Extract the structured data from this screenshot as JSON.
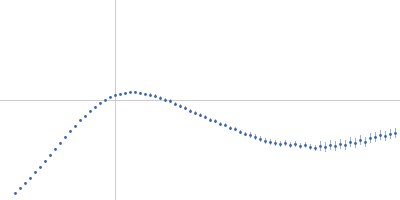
{
  "chart_data": {
    "type": "scatter",
    "x": [
      0.15,
      0.2,
      0.25,
      0.3,
      0.35,
      0.4,
      0.45,
      0.5,
      0.55,
      0.6,
      0.65,
      0.7,
      0.75,
      0.8,
      0.85,
      0.9,
      0.95,
      1.0,
      1.05,
      1.1,
      1.15,
      1.2,
      1.25,
      1.3,
      1.35,
      1.4,
      1.45,
      1.5,
      1.55,
      1.6,
      1.65,
      1.7,
      1.75,
      1.8,
      1.85,
      1.9,
      1.95,
      2.0,
      2.05,
      2.1,
      2.15,
      2.2,
      2.25,
      2.3,
      2.35,
      2.4,
      2.45,
      2.5,
      2.55,
      2.6,
      2.65,
      2.7,
      2.75,
      2.8,
      2.85,
      2.9,
      2.95,
      3.0,
      3.05,
      3.1,
      3.15,
      3.2,
      3.25,
      3.3,
      3.35,
      3.4,
      3.45,
      3.5,
      3.55,
      3.6,
      3.65,
      3.7,
      3.75,
      3.8,
      3.85,
      3.9,
      3.95
    ],
    "values": [
      0.07,
      0.12,
      0.17,
      0.22,
      0.28,
      0.33,
      0.39,
      0.45,
      0.51,
      0.57,
      0.63,
      0.69,
      0.74,
      0.8,
      0.84,
      0.89,
      0.93,
      0.97,
      1.0,
      1.03,
      1.05,
      1.06,
      1.07,
      1.08,
      1.08,
      1.07,
      1.06,
      1.05,
      1.04,
      1.02,
      1.0,
      0.99,
      0.96,
      0.94,
      0.92,
      0.89,
      0.87,
      0.85,
      0.83,
      0.8,
      0.79,
      0.76,
      0.75,
      0.72,
      0.71,
      0.68,
      0.66,
      0.65,
      0.63,
      0.61,
      0.59,
      0.58,
      0.57,
      0.56,
      0.57,
      0.55,
      0.56,
      0.54,
      0.55,
      0.53,
      0.52,
      0.54,
      0.53,
      0.55,
      0.54,
      0.56,
      0.55,
      0.58,
      0.57,
      0.6,
      0.58,
      0.62,
      0.63,
      0.65,
      0.64,
      0.66,
      0.67
    ],
    "error": [
      0.01,
      0.01,
      0.01,
      0.01,
      0.01,
      0.01,
      0.01,
      0.01,
      0.01,
      0.01,
      0.01,
      0.01,
      0.01,
      0.01,
      0.01,
      0.01,
      0.01,
      0.01,
      0.01,
      0.01,
      0.01,
      0.01,
      0.01,
      0.01,
      0.01,
      0.01,
      0.01,
      0.02,
      0.02,
      0.02,
      0.02,
      0.02,
      0.02,
      0.02,
      0.02,
      0.02,
      0.02,
      0.02,
      0.02,
      0.02,
      0.02,
      0.02,
      0.02,
      0.02,
      0.02,
      0.02,
      0.02,
      0.03,
      0.03,
      0.03,
      0.03,
      0.03,
      0.03,
      0.03,
      0.03,
      0.03,
      0.03,
      0.03,
      0.03,
      0.03,
      0.03,
      0.05,
      0.05,
      0.05,
      0.05,
      0.05,
      0.05,
      0.05,
      0.05,
      0.05,
      0.05,
      0.05,
      0.05,
      0.05,
      0.05,
      0.05,
      0.05
    ],
    "color": "#3a64b4",
    "marker": "circle",
    "xlim": [
      0,
      4
    ],
    "ylim": [
      0,
      2
    ],
    "xticks": [
      1.15
    ],
    "yticks": [
      1
    ],
    "grid": true,
    "tick_labels": false
  }
}
